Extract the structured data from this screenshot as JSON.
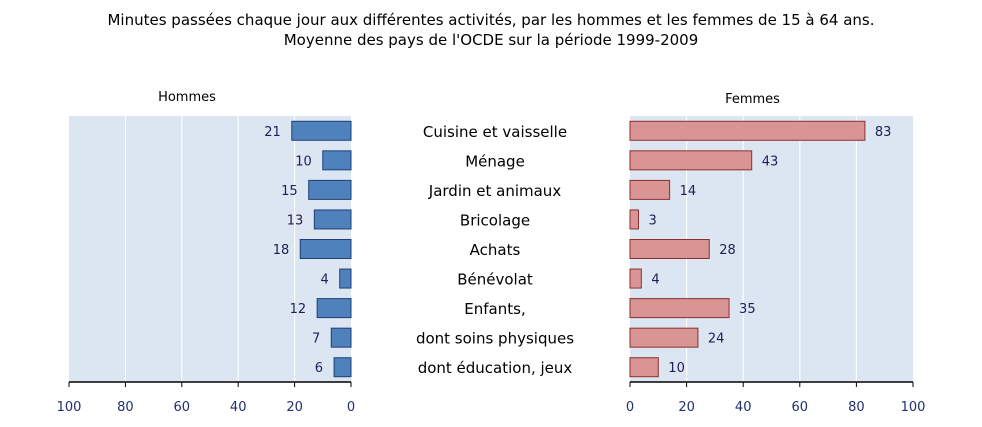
{
  "title_lines": [
    "Minutes passées chaque jour aux différentes activités, par les hommes et les femmes de 15 à 64 ans.",
    "Moyenne des pays de l'OCDE sur la période 1999-2009"
  ],
  "chart_data": {
    "type": "bar",
    "orientation": "horizontal",
    "layout": "butterfly",
    "categories": [
      "Cuisine et vaisselle",
      "Ménage",
      "Jardin et animaux",
      "Bricolage",
      "Achats",
      "Bénévolat",
      "Enfants,",
      "dont soins physiques",
      "dont éducation, jeux"
    ],
    "series": [
      {
        "name": "Hommes",
        "values": [
          21,
          10,
          15,
          13,
          18,
          4,
          12,
          7,
          6
        ],
        "color": "#4f81bd",
        "direction": "left"
      },
      {
        "name": "Femmes",
        "values": [
          83,
          43,
          14,
          3,
          28,
          4,
          35,
          24,
          10
        ],
        "color": "#d99594",
        "direction": "right"
      }
    ],
    "xlim": [
      0,
      100
    ],
    "xticks": [
      0,
      20,
      40,
      60,
      80,
      100
    ],
    "left_ticks": [
      "100",
      "80",
      "60",
      "40",
      "20",
      "0"
    ],
    "right_ticks": [
      "0",
      "20",
      "40",
      "60",
      "80",
      "100"
    ],
    "grid": true,
    "data_labels": true,
    "plot_background": "#dce6f2"
  }
}
